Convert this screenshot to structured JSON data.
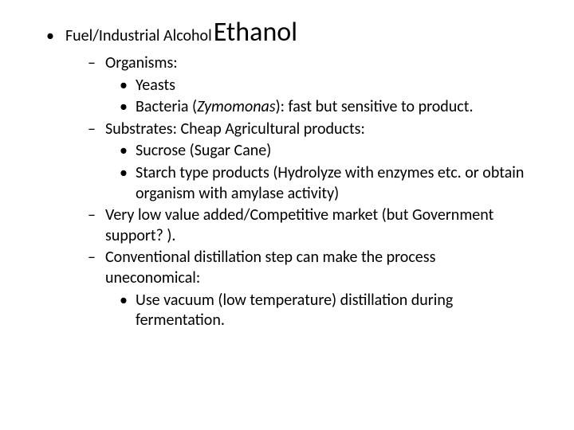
{
  "title": "Ethanol",
  "lead_bullet": "•",
  "lead_text": "Fuel/Industrial Alcohol",
  "items": [
    {
      "text": "Organisms:",
      "children": [
        {
          "text": "Yeasts"
        },
        {
          "prefix": "Bacteria (",
          "italic": "Zymomonas",
          "suffix": "): fast but sensitive to product."
        }
      ]
    },
    {
      "text": "Substrates:  Cheap Agricultural products:",
      "children": [
        {
          "text": "Sucrose (Sugar Cane)"
        },
        {
          "text": "Starch type products (Hydrolyze with enzymes etc. or obtain organism with amylase activity)"
        }
      ]
    },
    {
      "text": "Very low value added/Competitive market (but Government support? )."
    },
    {
      "text": "Conventional distillation step can make the process uneconomical:",
      "children": [
        {
          "text": "Use vacuum (low temperature) distillation during fermentation."
        }
      ]
    }
  ]
}
